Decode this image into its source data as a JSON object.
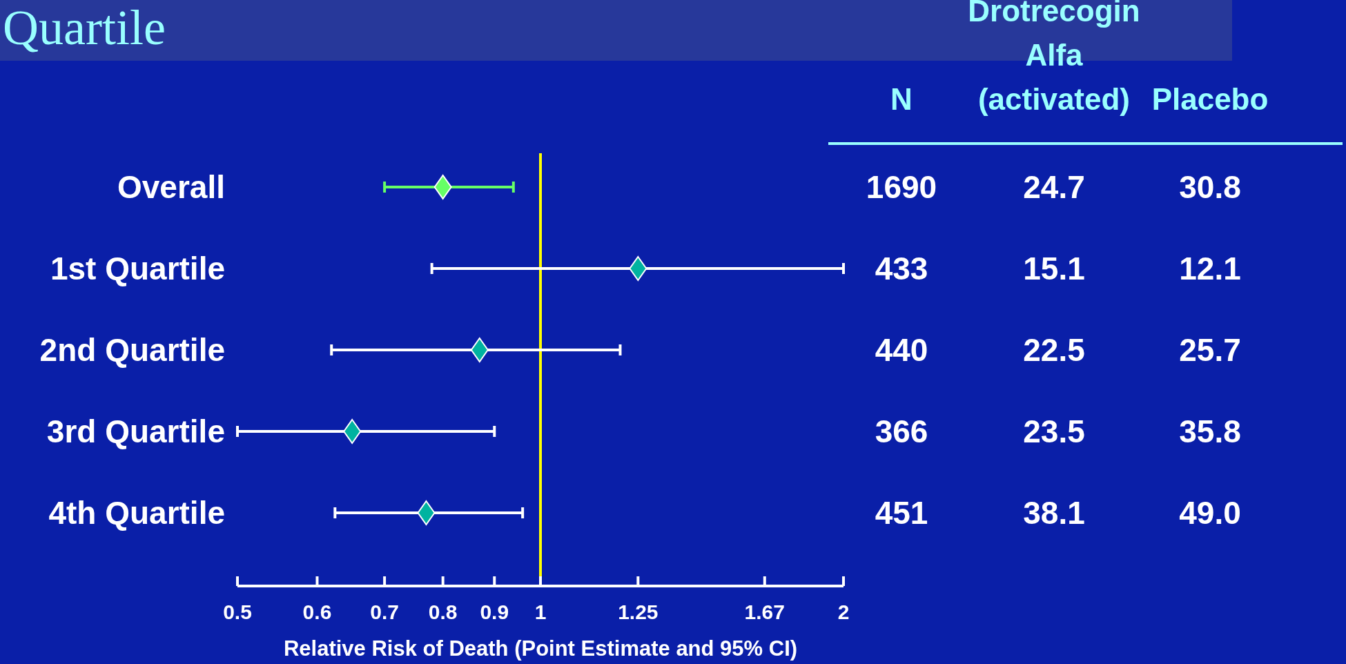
{
  "chart_data": [
    {
      "type": "scatter",
      "title": "Quartile",
      "categories": [
        "Overall",
        "1st Quartile",
        "2nd Quartile",
        "3rd Quartile",
        "4th Quartile"
      ],
      "values": [
        0.8,
        1.25,
        0.87,
        0.65,
        0.77
      ],
      "errors": [
        [
          0.7,
          0.94
        ],
        [
          0.78,
          2.0
        ],
        [
          0.62,
          1.2
        ],
        [
          0.5,
          0.9
        ],
        [
          0.625,
          0.96
        ]
      ],
      "colors": [
        "#66ff66",
        "#00b3a0",
        "#00b3a0",
        "#00b3a0",
        "#00b3a0"
      ],
      "orientation": "horizontal",
      "log": "x",
      "marker": "diamond",
      "xlim": [
        0.5,
        2
      ],
      "xticks": [
        0.5,
        0.6,
        0.7,
        0.8,
        0.9,
        1,
        1.25,
        1.67,
        2
      ],
      "xlabel": "Relative Risk of Death (Point Estimate and 95% CI)",
      "ref_lines": [
        {
          "axis": "x",
          "value": 1,
          "color": "#ffff00"
        }
      ]
    },
    {
      "type": "other",
      "categories": [
        "N",
        "Drotrecogin Alfa (activated)",
        "Placebo"
      ],
      "cell_labels": [
        [
          "1690",
          "24.7",
          "30.8"
        ],
        [
          "433",
          "15.1",
          "12.1"
        ],
        [
          "440",
          "22.5",
          "25.7"
        ],
        [
          "366",
          "23.5",
          "35.8"
        ],
        [
          "451",
          "38.1",
          "49.0"
        ]
      ]
    }
  ]
}
